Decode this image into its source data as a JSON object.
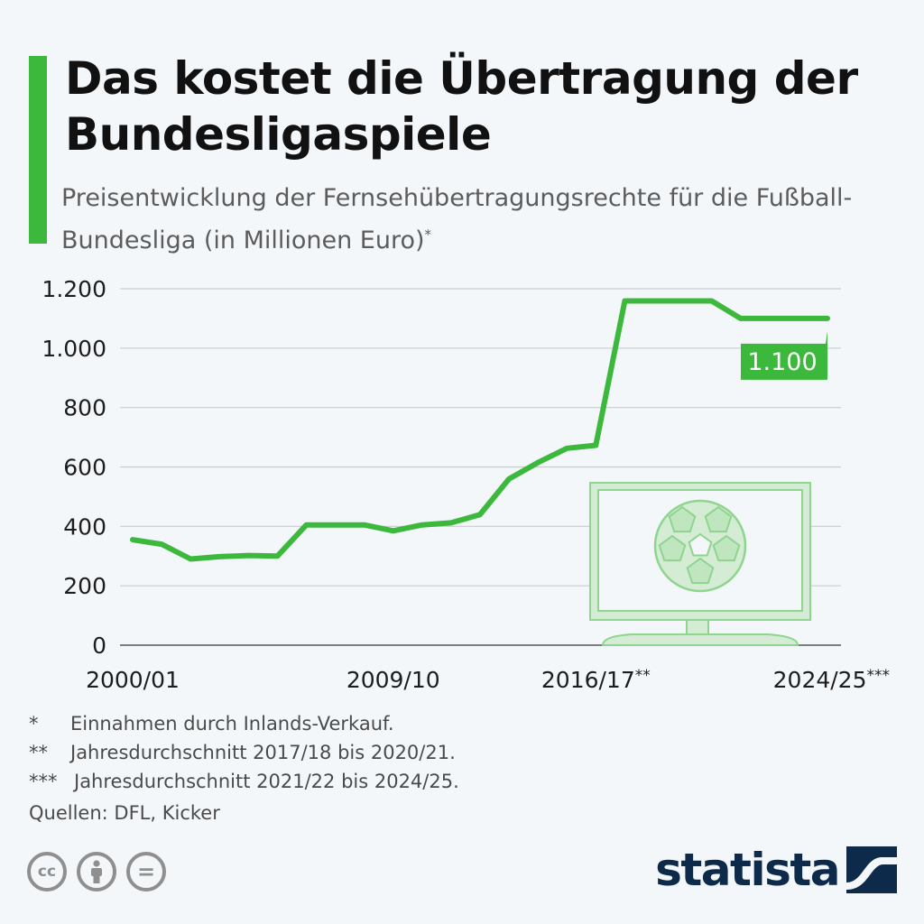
{
  "title": "Das kostet die Übertragung der Bundesligaspiele",
  "subtitle": "Preisentwicklung der Fernsehübertragungsrechte für die Fußball-Bundesliga (in Millionen Euro)",
  "subtitle_mark": "*",
  "colors": {
    "accent": "#3cb93c",
    "line": "#3cb93c",
    "grid": "#c9cdd2",
    "logo": "#0e2a4a"
  },
  "chart_data": {
    "type": "line",
    "title": "",
    "xlabel": "",
    "ylabel": "",
    "ylim": [
      0,
      1200
    ],
    "yticks": [
      0,
      200,
      400,
      600,
      800,
      1000,
      1200
    ],
    "ytick_labels": [
      "0",
      "200",
      "400",
      "600",
      "800",
      "1.000",
      "1.200"
    ],
    "x_tick_labels": [
      {
        "season": "2000/01",
        "label": "2000/01"
      },
      {
        "season": "2009/10",
        "label": "2009/10"
      },
      {
        "season": "2016/17",
        "label": "2016/17**"
      },
      {
        "season": "2024/25",
        "label": "2024/25***"
      }
    ],
    "grid": true,
    "series": [
      {
        "x": [
          "2000/01",
          "2001/02",
          "2002/03",
          "2003/04",
          "2004/05",
          "2005/06",
          "2006/07",
          "2007/08",
          "2008/09",
          "2009/10",
          "2010/11",
          "2011/12",
          "2012/13",
          "2013/14",
          "2014/15",
          "2015/16",
          "2016/17",
          "2017/18",
          "2018/19",
          "2019/20",
          "2020/21",
          "2021/22",
          "2022/23",
          "2023/24",
          "2024/25"
        ],
        "values": [
          355,
          340,
          290,
          298,
          302,
          300,
          405,
          405,
          405,
          385,
          405,
          412,
          440,
          560,
          615,
          663,
          673,
          1159,
          1159,
          1159,
          1159,
          1100,
          1100,
          1100,
          1100
        ]
      }
    ],
    "annotation": {
      "season": "2024/25",
      "label": "1.100"
    }
  },
  "footnotes": [
    {
      "mark": "*",
      "text": "Einnahmen durch Inlands-Verkauf."
    },
    {
      "mark": "**",
      "text": "Jahresdurchschnitt 2017/18 bis 2020/21."
    },
    {
      "mark": "***",
      "text": "Jahresdurchschnitt 2021/22 bis 2024/25."
    }
  ],
  "source": "Quellen: DFL, Kicker",
  "license_icons": [
    {
      "name": "cc-icon",
      "glyph": "cc"
    },
    {
      "name": "by-person-icon",
      "glyph": ""
    },
    {
      "name": "nd-equals-icon",
      "glyph": "="
    }
  ],
  "logo_text": "statista"
}
